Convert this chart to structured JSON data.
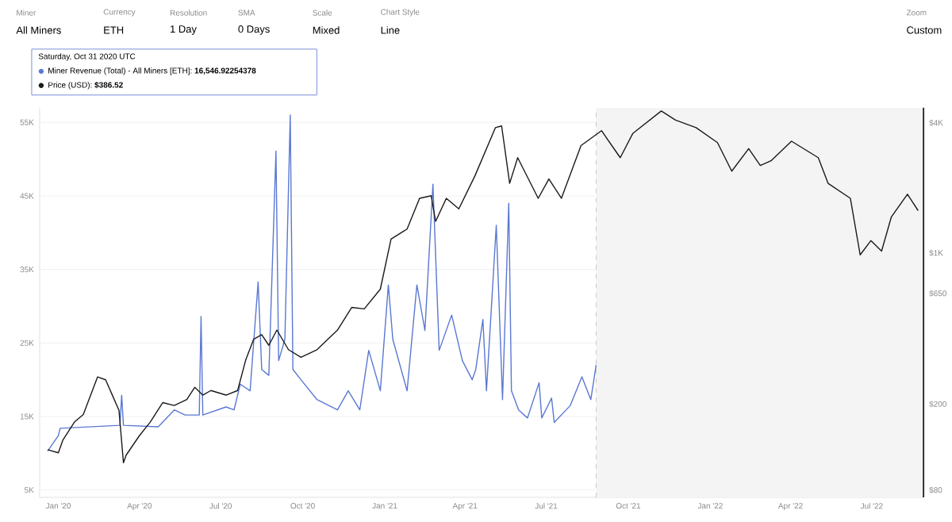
{
  "chart_data": {
    "type": "line",
    "annotations": [
      "Miner",
      "All Miners",
      "Currency",
      "ETH",
      "Resolution",
      "1 Day",
      "SMA",
      "0 Days",
      "Scale",
      "Mixed",
      "Chart Style",
      "Line",
      "Zoom",
      "Custom",
      "Saturday, Oct 31 2020 UTC",
      "Miner Revenue (Total) - All Miners [ETH]: **16,546.92254378**",
      "Price (USD): **$386.52**"
    ],
    "xlim": [
      "2019-12-11",
      "2022-08-28"
    ],
    "xticks": [
      {
        "value": "2020-01-01",
        "label": "Jan '20"
      },
      {
        "value": "2020-04-01",
        "label": "Apr '20"
      },
      {
        "value": "2020-07-01",
        "label": "Jul '20"
      },
      {
        "value": "2020-10-01",
        "label": "Oct '20"
      },
      {
        "value": "2021-01-01",
        "label": "Jan '21"
      },
      {
        "value": "2021-04-01",
        "label": "Apr '21"
      },
      {
        "value": "2021-07-01",
        "label": "Jul '21"
      },
      {
        "value": "2021-10-01",
        "label": "Oct '21"
      },
      {
        "value": "2022-01-01",
        "label": "Jan '22"
      },
      {
        "value": "2022-04-01",
        "label": "Apr '22"
      },
      {
        "value": "2022-07-01",
        "label": "Jul '22"
      }
    ],
    "ylim": [
      4000,
      57000
    ],
    "yticks": [
      {
        "value": 5000,
        "label": "5K"
      },
      {
        "value": 15000,
        "label": "15K"
      },
      {
        "value": 25000,
        "label": "25K"
      },
      {
        "value": 35000,
        "label": "35K"
      },
      {
        "value": 45000,
        "label": "45K"
      },
      {
        "value": 55000,
        "label": "55K"
      }
    ],
    "y2lim": [
      74,
      4700
    ],
    "y2ticks": [
      {
        "value": 80,
        "label": "$80"
      },
      {
        "value": 200,
        "label": "$200"
      },
      {
        "value": 650,
        "label": "$650"
      },
      {
        "value": 1000,
        "label": "$1K"
      },
      {
        "value": 4000,
        "label": "$4K"
      }
    ],
    "log": "y2",
    "grid": "y",
    "ref_lines": [
      {
        "axis": "x",
        "value": "2021-08-26",
        "color": "#bfbfbf",
        "line_style": "dashed"
      }
    ],
    "bands": [
      {
        "axis": "x",
        "from": "2021-08-26",
        "to": "2022-08-28",
        "color": "#f4f4f4"
      }
    ],
    "series": [
      {
        "color": "#5a78d2",
        "x": [
          "2019-12-20",
          "2020-01-01",
          "2020-01-03",
          "2020-03-10",
          "2020-03-12",
          "2020-03-14",
          "2020-04-22",
          "2020-05-10",
          "2020-05-22",
          "2020-06-07",
          "2020-06-09",
          "2020-06-11",
          "2020-07-07",
          "2020-07-16",
          "2020-07-23",
          "2020-08-03",
          "2020-08-12",
          "2020-08-16",
          "2020-08-24",
          "2020-09-01",
          "2020-09-04",
          "2020-09-11",
          "2020-09-17",
          "2020-09-20",
          "2020-09-29",
          "2020-10-17",
          "2020-11-09",
          "2020-11-21",
          "2020-12-04",
          "2020-12-14",
          "2020-12-27",
          "2021-01-05",
          "2021-01-10",
          "2021-01-26",
          "2021-02-06",
          "2021-02-15",
          "2021-02-24",
          "2021-03-03",
          "2021-03-17",
          "2021-03-29",
          "2021-04-09",
          "2021-04-13",
          "2021-04-21",
          "2021-04-25",
          "2021-05-06",
          "2021-05-13",
          "2021-05-20",
          "2021-05-23",
          "2021-05-31",
          "2021-06-10",
          "2021-06-23",
          "2021-06-26",
          "2021-07-07",
          "2021-07-10",
          "2021-07-28",
          "2021-08-10",
          "2021-08-20",
          "2021-08-26"
        ],
        "values": [
          10300,
          12400,
          13400,
          13800,
          17900,
          13800,
          13600,
          15900,
          15200,
          15200,
          28600,
          15200,
          16300,
          15900,
          19400,
          18500,
          33300,
          21400,
          20600,
          51100,
          22600,
          25500,
          56000,
          21400,
          20000,
          17300,
          15900,
          18500,
          15900,
          24000,
          18500,
          32900,
          25500,
          18500,
          32900,
          26700,
          46600,
          24000,
          28800,
          22600,
          20000,
          21400,
          28200,
          18500,
          41000,
          17300,
          44000,
          18500,
          15900,
          14800,
          19600,
          14800,
          17500,
          14200,
          16500,
          20400,
          17300,
          22000
        ]
      },
      {
        "color": "#1a1a1a",
        "axis": "y2",
        "x": [
          "2019-12-20",
          "2020-01-01",
          "2020-01-06",
          "2020-01-19",
          "2020-01-29",
          "2020-02-14",
          "2020-02-23",
          "2020-03-03",
          "2020-03-09",
          "2020-03-14",
          "2020-03-17",
          "2020-04-01",
          "2020-04-13",
          "2020-04-27",
          "2020-05-10",
          "2020-05-24",
          "2020-06-02",
          "2020-06-11",
          "2020-06-20",
          "2020-07-07",
          "2020-07-20",
          "2020-07-29",
          "2020-08-07",
          "2020-08-16",
          "2020-08-24",
          "2020-09-02",
          "2020-09-15",
          "2020-09-29",
          "2020-10-17",
          "2020-11-09",
          "2020-11-25",
          "2020-12-09",
          "2020-12-27",
          "2021-01-08",
          "2021-01-26",
          "2021-02-09",
          "2021-02-22",
          "2021-02-27",
          "2021-03-11",
          "2021-03-25",
          "2021-04-12",
          "2021-05-05",
          "2021-05-12",
          "2021-05-21",
          "2021-05-30",
          "2021-06-22",
          "2021-07-04",
          "2021-07-18",
          "2021-08-09",
          "2021-09-01",
          "2021-09-22",
          "2021-10-06",
          "2021-11-07",
          "2021-11-23",
          "2021-12-16",
          "2022-01-09",
          "2022-01-25",
          "2022-02-13",
          "2022-02-26",
          "2022-03-10",
          "2022-04-02",
          "2022-05-02",
          "2022-05-13",
          "2022-06-07",
          "2022-06-18",
          "2022-06-30",
          "2022-07-12",
          "2022-07-23",
          "2022-08-10",
          "2022-08-22"
        ],
        "values": [
          123,
          119,
          136,
          165,
          179,
          267,
          259,
          213,
          187,
          107,
          116,
          143,
          165,
          203,
          197,
          210,
          239,
          220,
          231,
          220,
          231,
          319,
          399,
          419,
          374,
          440,
          357,
          329,
          357,
          440,
          560,
          551,
          680,
          1160,
          1290,
          1790,
          1840,
          1400,
          1790,
          1600,
          2270,
          3800,
          3870,
          2100,
          2760,
          1790,
          2200,
          1790,
          3140,
          3680,
          2760,
          3570,
          4540,
          4120,
          3800,
          3240,
          2390,
          3040,
          2540,
          2670,
          3290,
          2760,
          2100,
          1790,
          980,
          1140,
          1020,
          1470,
          1870,
          1570
        ]
      }
    ]
  }
}
